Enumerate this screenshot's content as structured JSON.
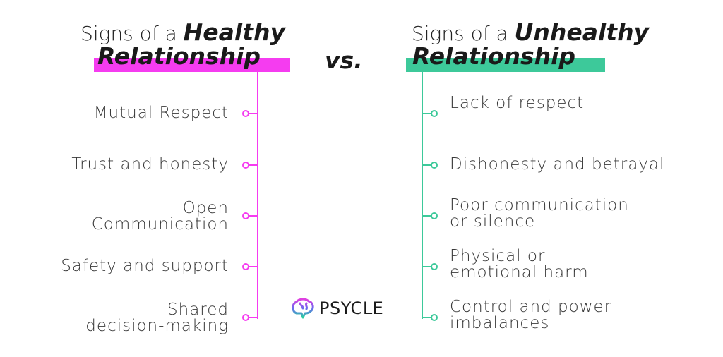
{
  "colors": {
    "healthy": "#f53cf0",
    "unhealthy": "#3dc99a"
  },
  "healthy": {
    "title_prefix": "Signs of a",
    "title_em": "Healthy",
    "title_line2": "Relationship",
    "items": [
      [
        "Mutual Respect"
      ],
      [
        "Trust and honesty"
      ],
      [
        "Open",
        "Communication"
      ],
      [
        "Safety and support"
      ],
      [
        "Shared",
        "decision-making"
      ]
    ]
  },
  "vs": "vs.",
  "unhealthy": {
    "title_prefix": "Signs of a",
    "title_em": "Unhealthy",
    "title_line2": "Relationship",
    "items": [
      [
        "Lack of respect"
      ],
      [
        "Dishonesty and betrayal"
      ],
      [
        "Poor communication",
        "or silence"
      ],
      [
        "Physical or",
        "emotional harm"
      ],
      [
        "Control and power",
        "imbalances"
      ]
    ]
  },
  "logo": {
    "text": "PSYCLE",
    "icon": "brain-icon"
  }
}
